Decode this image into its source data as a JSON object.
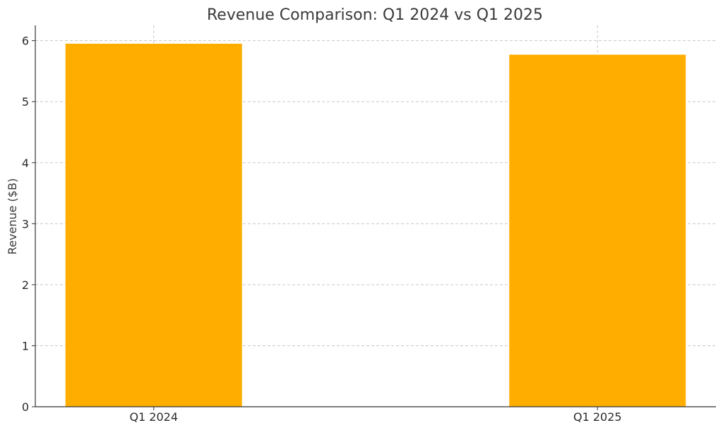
{
  "chart_data": {
    "type": "bar",
    "title": "Revenue Comparison: Q1 2024 vs Q1 2025",
    "xlabel": "",
    "ylabel": "Revenue ($B)",
    "categories": [
      "Q1 2024",
      "Q1 2025"
    ],
    "values": [
      5.95,
      5.77
    ],
    "ylim": [
      0,
      6.25
    ],
    "yticks": [
      "0",
      "1",
      "2",
      "3",
      "4",
      "5",
      "6"
    ],
    "grid": true,
    "bar_color": "#FFAE00"
  }
}
